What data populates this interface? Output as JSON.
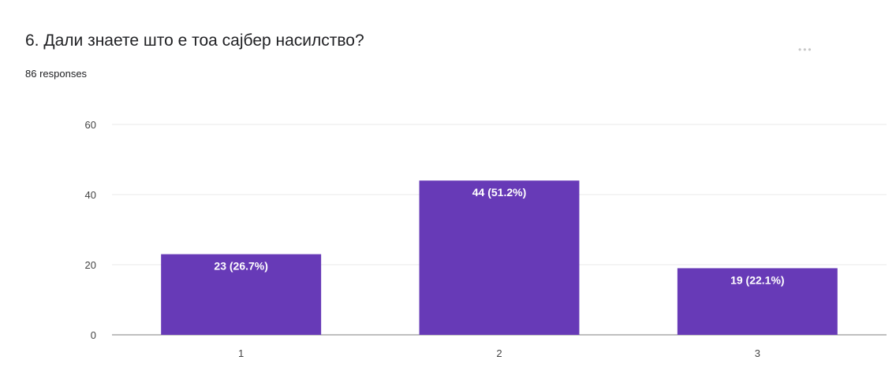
{
  "question": {
    "title": "6. Дали знаете што е тоа сајбер насилство?",
    "responses": "86 responses"
  },
  "colors": {
    "bar": "#673ab7",
    "grid": "#e8e8e8",
    "axis": "#999999"
  },
  "chart_data": {
    "type": "bar",
    "categories": [
      "1",
      "2",
      "3"
    ],
    "values": [
      23,
      44,
      19
    ],
    "data_labels": [
      "23 (26.7%)",
      "44 (51.2%)",
      "19 (22.1%)"
    ],
    "y_ticks": [
      "0",
      "20",
      "40",
      "60"
    ],
    "ylim": [
      0,
      60
    ],
    "title": "",
    "xlabel": "",
    "ylabel": "",
    "grid": true,
    "legend": "none"
  }
}
